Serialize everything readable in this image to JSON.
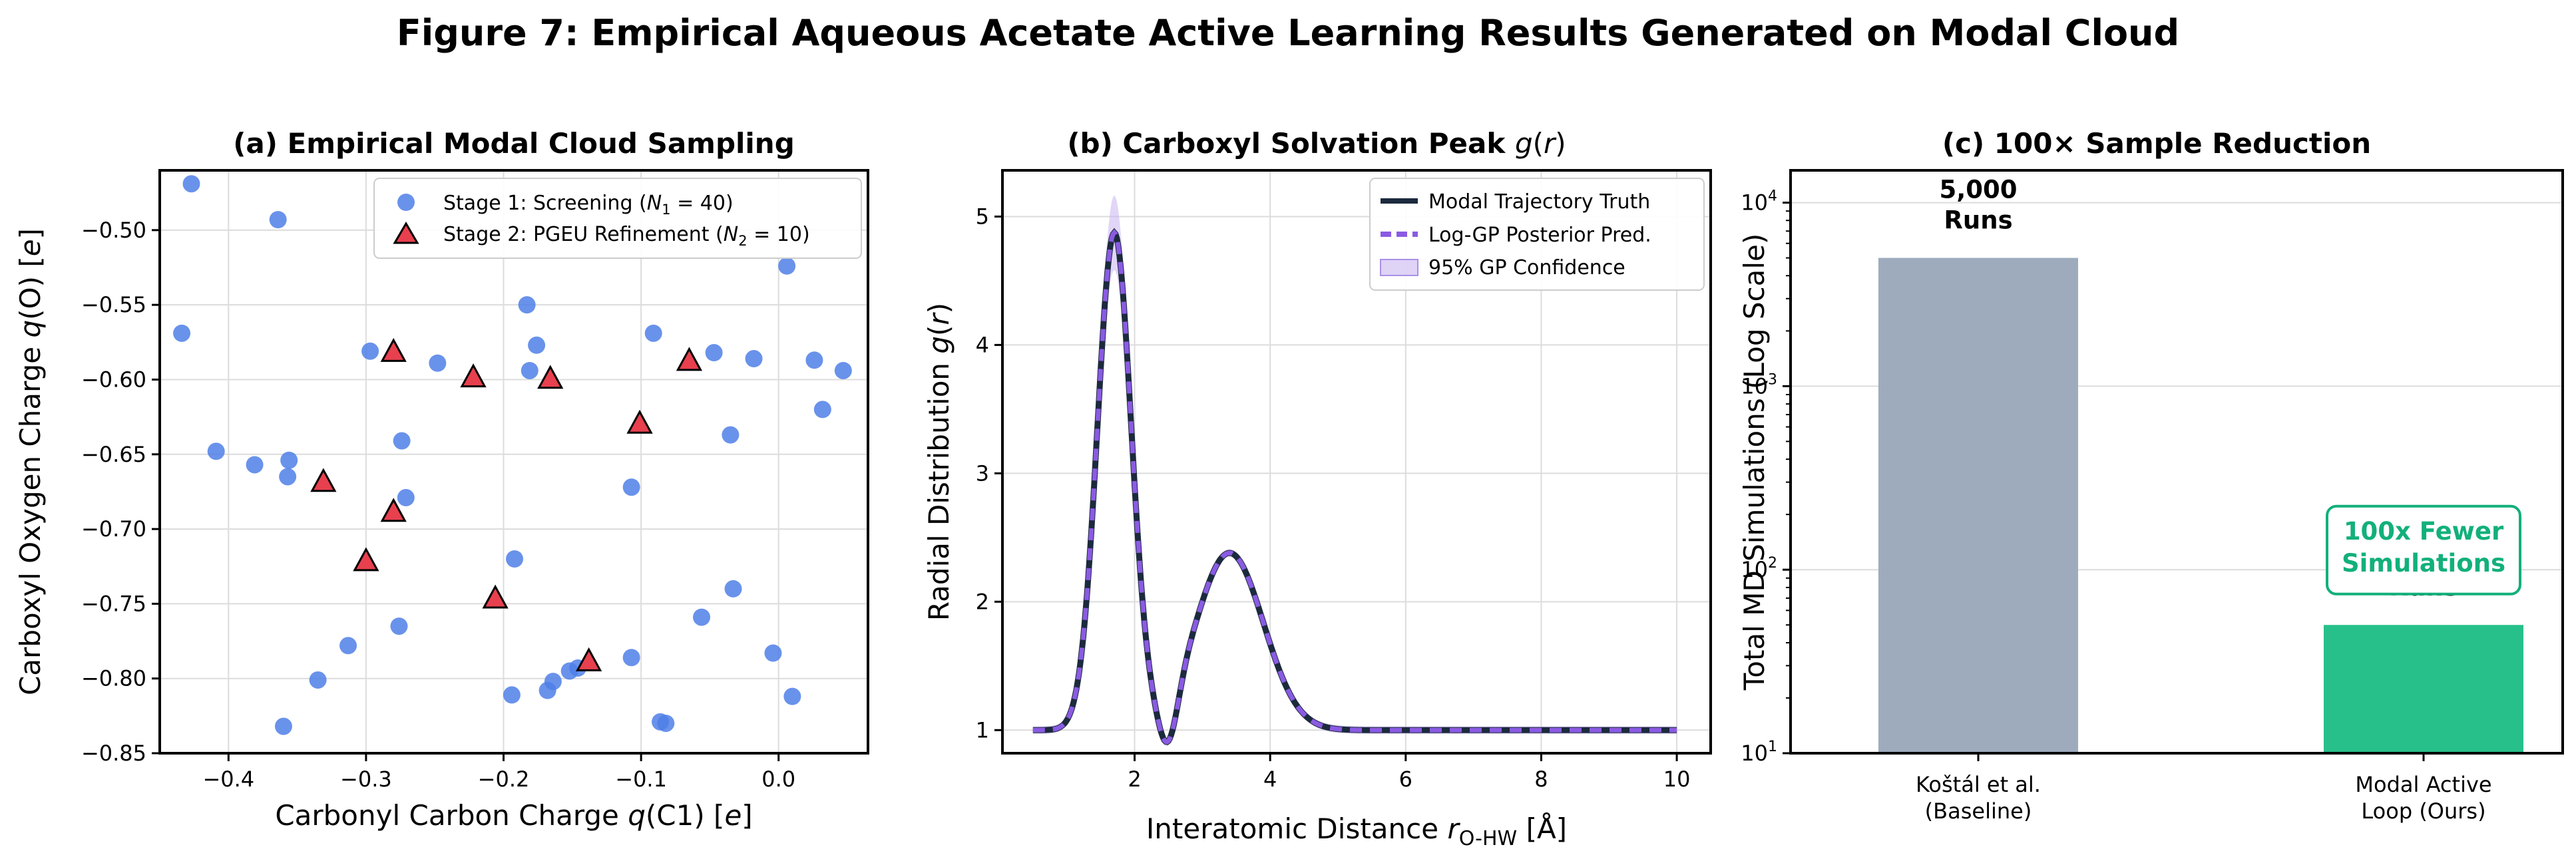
{
  "figure": {
    "title": "Figure 7: Empirical Aqueous Acetate Active Learning Results Generated on Modal Cloud"
  },
  "chart_data": [
    {
      "type": "scatter",
      "title": "(a) Empirical Modal Cloud Sampling",
      "xlabel": "Carbonyl Carbon Charge q(C1) [e]",
      "ylabel": "Carboxyl Oxygen Charge q(O) [e]",
      "xlim": [
        -0.45,
        0.065
      ],
      "ylim": [
        -0.85,
        -0.46
      ],
      "xticks": [
        -0.4,
        -0.3,
        -0.2,
        -0.1,
        0.0
      ],
      "yticks": [
        -0.85,
        -0.8,
        -0.75,
        -0.7,
        -0.65,
        -0.6,
        -0.55,
        -0.5
      ],
      "grid": true,
      "legend_position": "top-right",
      "series": [
        {
          "name": "Stage 1: Screening (N1 = 40)",
          "marker": "circle",
          "color": "#4f7fe8",
          "points": [
            [
              -0.427,
              -0.469
            ],
            [
              -0.434,
              -0.569
            ],
            [
              -0.364,
              -0.493
            ],
            [
              -0.409,
              -0.648
            ],
            [
              -0.381,
              -0.657
            ],
            [
              -0.356,
              -0.654
            ],
            [
              -0.357,
              -0.665
            ],
            [
              -0.36,
              -0.832
            ],
            [
              -0.335,
              -0.801
            ],
            [
              -0.313,
              -0.778
            ],
            [
              -0.297,
              -0.581
            ],
            [
              -0.274,
              -0.641
            ],
            [
              -0.271,
              -0.679
            ],
            [
              -0.276,
              -0.765
            ],
            [
              -0.248,
              -0.589
            ],
            [
              -0.183,
              -0.55
            ],
            [
              -0.176,
              -0.577
            ],
            [
              -0.181,
              -0.594
            ],
            [
              -0.192,
              -0.72
            ],
            [
              -0.194,
              -0.811
            ],
            [
              -0.168,
              -0.808
            ],
            [
              -0.164,
              -0.802
            ],
            [
              -0.152,
              -0.795
            ],
            [
              -0.146,
              -0.793
            ],
            [
              -0.107,
              -0.786
            ],
            [
              -0.107,
              -0.672
            ],
            [
              -0.091,
              -0.569
            ],
            [
              -0.086,
              -0.829
            ],
            [
              -0.082,
              -0.83
            ],
            [
              -0.056,
              -0.759
            ],
            [
              -0.047,
              -0.582
            ],
            [
              -0.035,
              -0.637
            ],
            [
              -0.033,
              -0.74
            ],
            [
              -0.018,
              -0.586
            ],
            [
              -0.004,
              -0.783
            ],
            [
              0.006,
              -0.524
            ],
            [
              0.01,
              -0.812
            ],
            [
              0.026,
              -0.587
            ],
            [
              0.032,
              -0.62
            ],
            [
              0.047,
              -0.594
            ]
          ]
        },
        {
          "name": "Stage 2: PGEU Refinement (N2 = 10)",
          "marker": "triangle",
          "color": "#e8404e",
          "points": [
            [
              -0.28,
              -0.582
            ],
            [
              -0.222,
              -0.599
            ],
            [
              -0.166,
              -0.6
            ],
            [
              -0.065,
              -0.588
            ],
            [
              -0.101,
              -0.63
            ],
            [
              -0.331,
              -0.669
            ],
            [
              -0.28,
              -0.689
            ],
            [
              -0.3,
              -0.722
            ],
            [
              -0.206,
              -0.747
            ],
            [
              -0.138,
              -0.789
            ]
          ]
        }
      ]
    },
    {
      "type": "line",
      "title": "(b) Carboxyl Solvation Peak g(r)",
      "xlabel": "Interatomic Distance r O-HW [Å]",
      "ylabel": "Radial Distribution g(r)",
      "xlim": [
        0.05,
        10.5
      ],
      "ylim": [
        0.82,
        5.36
      ],
      "xticks": [
        2,
        4,
        6,
        8,
        10
      ],
      "yticks": [
        1,
        2,
        3,
        4,
        5
      ],
      "grid": true,
      "legend_position": "top-right",
      "x_range": [
        0.5,
        10.0
      ],
      "model": {
        "baseline": 1.0,
        "peaks": [
          {
            "center": 1.7,
            "width": 0.25,
            "height": 3.87
          },
          {
            "center": 3.4,
            "width": 0.5,
            "height": 1.38
          }
        ],
        "dip": {
          "center": 2.5,
          "width": 0.14,
          "depth": 0.38
        }
      },
      "confidence_width": {
        "first_peak_max": 0.26,
        "elsewhere": 0.03
      },
      "series": [
        {
          "name": "Modal Trajectory Truth",
          "color": "#1c2a3d",
          "style": "solid"
        },
        {
          "name": "Log-GP Posterior Pred.",
          "color": "#8a5be2",
          "style": "dashed"
        },
        {
          "name": "95% GP Confidence",
          "color": "#c9b5f0",
          "style": "band"
        }
      ]
    },
    {
      "type": "bar",
      "title": "(c) 100× Sample Reduction",
      "ylabel": "Total MD Simulations (Log Scale)",
      "yscale": "log",
      "ylim": [
        10,
        15000
      ],
      "yticks": [
        10,
        100,
        1000,
        10000
      ],
      "grid": true,
      "categories": [
        "Koštál et al.\n(Baseline)",
        "Modal Active\nLoop (Ours)"
      ],
      "values": [
        5000,
        50
      ],
      "colors": [
        "#9dabbd",
        "#27c08a"
      ],
      "data_labels": [
        "5,000\nRuns",
        "50\nRuns"
      ],
      "annotation": {
        "text": "100x Fewer\nSimulations",
        "color": "#12b07a"
      }
    }
  ]
}
